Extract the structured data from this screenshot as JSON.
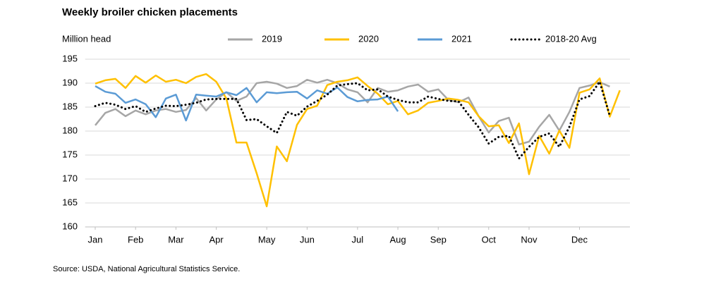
{
  "chart_data": {
    "type": "line",
    "title": "Weekly broiler chicken placements",
    "y_label": "Million head",
    "source": "Source: USDA, National Agricultural Statistics Service.",
    "x": [
      1,
      2,
      3,
      4,
      5,
      6,
      7,
      8,
      9,
      10,
      11,
      12,
      13,
      14,
      15,
      16,
      17,
      18,
      19,
      20,
      21,
      22,
      23,
      24,
      25,
      26,
      27,
      28,
      29,
      30,
      31,
      32,
      33,
      34,
      35,
      36,
      37,
      38,
      39,
      40,
      41,
      42,
      43,
      44,
      45,
      46,
      47,
      48,
      49,
      50,
      51,
      52,
      53
    ],
    "xlim": [
      0,
      54
    ],
    "xticks": [
      {
        "value": 1,
        "label": "Jan"
      },
      {
        "value": 5,
        "label": "Feb"
      },
      {
        "value": 9,
        "label": "Mar"
      },
      {
        "value": 13,
        "label": "Apr"
      },
      {
        "value": 18,
        "label": "May"
      },
      {
        "value": 22,
        "label": "Jun"
      },
      {
        "value": 27,
        "label": "Jul"
      },
      {
        "value": 31,
        "label": "Aug"
      },
      {
        "value": 35,
        "label": "Sep"
      },
      {
        "value": 40,
        "label": "Oct"
      },
      {
        "value": 44,
        "label": "Nov"
      },
      {
        "value": 49,
        "label": "Dec"
      }
    ],
    "ylim": [
      160,
      195
    ],
    "yticks": [
      160,
      165,
      170,
      175,
      180,
      185,
      190,
      195
    ],
    "grid": true,
    "legend": "top",
    "series": [
      {
        "name": "2019",
        "color": "#a6a6a6",
        "dash": false,
        "values": [
          181.2,
          183.8,
          184.6,
          183.1,
          184.3,
          183.5,
          184.3,
          184.6,
          184,
          184.4,
          186.9,
          184.3,
          186.6,
          188.1,
          186.3,
          187.2,
          190,
          190.3,
          189.9,
          189,
          189.4,
          190.7,
          190.1,
          190.7,
          190,
          188.7,
          188.1,
          186,
          189,
          188.2,
          188.5,
          189.3,
          189.7,
          188.2,
          188.7,
          186.5,
          186,
          187,
          183.1,
          179.7,
          182.1,
          182.8,
          177.2,
          177.8,
          180.9,
          183.4,
          180.1,
          184,
          189,
          189.5,
          190.2,
          189.3,
          null
        ]
      },
      {
        "name": "2020",
        "color": "#ffc000",
        "dash": false,
        "values": [
          189.9,
          190.6,
          190.9,
          189,
          191.5,
          190.1,
          191.6,
          190.3,
          190.7,
          190,
          191.3,
          191.9,
          190.3,
          186.8,
          177.6,
          177.6,
          171.2,
          164.3,
          176.8,
          173.7,
          181.3,
          184.6,
          185.3,
          189.6,
          190.3,
          190.6,
          191.2,
          189.4,
          187.8,
          185.6,
          186.3,
          183.5,
          184.3,
          185.9,
          186.3,
          186.8,
          186.5,
          186,
          183.1,
          181,
          181.2,
          177.5,
          181.6,
          171,
          179,
          175.3,
          180.1,
          176.5,
          188,
          188.7,
          191,
          183,
          188.5
        ]
      },
      {
        "name": "2021",
        "color": "#5b9bd5",
        "dash": false,
        "values": [
          189.4,
          188.2,
          187.8,
          185.9,
          186.6,
          185.6,
          182.9,
          186.8,
          187.6,
          182.2,
          187.6,
          187.4,
          187.2,
          188.1,
          187.5,
          189,
          186,
          188.1,
          187.9,
          188.1,
          188.2,
          186.8,
          188.5,
          187.8,
          189.1,
          187.1,
          186.2,
          186.5,
          186.6,
          187.2,
          184.1,
          null,
          null,
          null,
          null,
          null,
          null,
          null,
          null,
          null,
          null,
          null,
          null,
          null,
          null,
          null,
          null,
          null,
          null,
          null,
          null,
          null,
          null
        ]
      },
      {
        "name": "2018-20 Avg",
        "color": "#000000",
        "dash": true,
        "values": [
          185.2,
          185.9,
          185.5,
          184.6,
          185.2,
          184,
          184.7,
          185.3,
          185.2,
          185.5,
          185.9,
          186.6,
          186.7,
          186.7,
          186.7,
          182.3,
          182.5,
          181,
          179.6,
          184,
          183.2,
          185.1,
          186.3,
          187.6,
          189.5,
          189.8,
          190,
          188.5,
          188.7,
          187.2,
          186.5,
          186,
          186,
          187.2,
          186.7,
          186.3,
          186.2,
          183.4,
          180.8,
          177.4,
          178.8,
          179,
          174.3,
          176.7,
          178.8,
          179.5,
          176.7,
          180.9,
          186.6,
          187.3,
          190.3,
          183.2,
          null
        ]
      }
    ]
  }
}
